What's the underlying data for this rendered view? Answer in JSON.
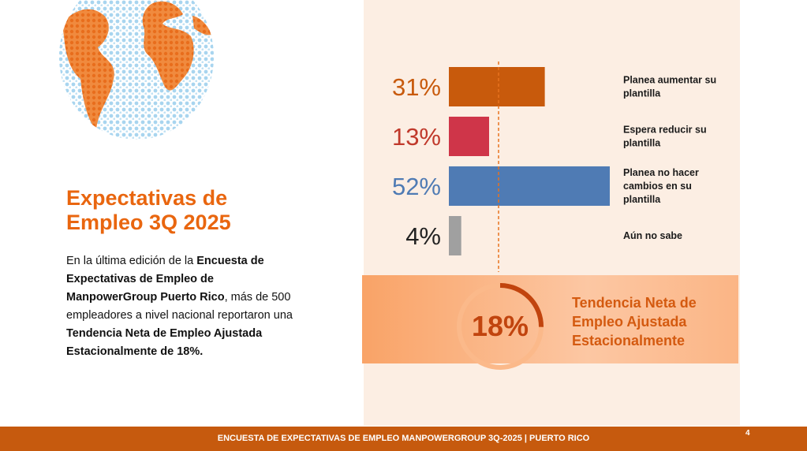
{
  "title": [
    "Expectativas de",
    "Empleo 3Q 2025"
  ],
  "body": {
    "t1": "En la última edición de la ",
    "b1": "Encuesta de Expectativas de Empleo de ManpowerGroup Puerto Rico",
    "t2": ", más de 500 empleadores a nivel nacional reportaron una ",
    "b2": "Tendencia Neta de Empleo Ajustada Estacionalmente de 18%."
  },
  "chart_data": {
    "type": "bar",
    "orientation": "horizontal",
    "categories": [
      "Planea aumentar su plantilla",
      "Espera reducir su plantilla",
      "Planea no hacer cambios en su plantilla",
      "Aún no sabe"
    ],
    "values": [
      31,
      13,
      52,
      4
    ],
    "value_labels": [
      "31%",
      "13%",
      "52%",
      "4%"
    ],
    "label_lines": [
      [
        "Planea aumentar su",
        "plantilla"
      ],
      [
        "Espera reducir su",
        "plantilla"
      ],
      [
        "Planea no hacer",
        "cambios en su",
        "plantilla"
      ],
      [
        "Aún no sabe"
      ]
    ],
    "colors": [
      "#c85a0c",
      "#cf3549",
      "#4f7bb4",
      "#a0a0a0"
    ],
    "value_colors": [
      "#c85a0c",
      "#c0392b",
      "#4f7bb4",
      "#222222"
    ],
    "unit": "%",
    "xlim": [
      0,
      100
    ],
    "net_employment_outlook": {
      "value": 18,
      "label": "18%",
      "description": [
        "Tendencia Neta de",
        "Empleo Ajustada",
        "Estacionalmente"
      ]
    }
  },
  "footer": {
    "text": "ENCUESTA DE EXPECTATIVAS DE EMPLEO MANPOWERGROUP 3Q-2025 | PUERTO RICO",
    "page": "4"
  }
}
